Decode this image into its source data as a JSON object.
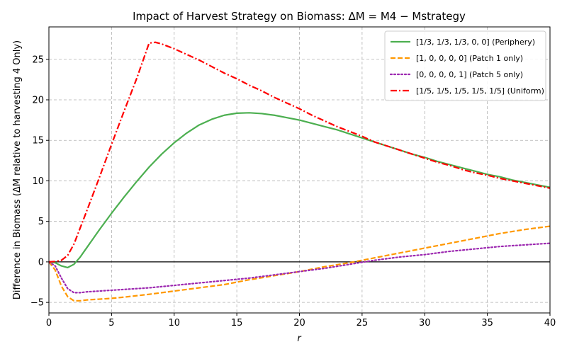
{
  "chart_data": {
    "type": "line",
    "title": "Impact of Harvest Strategy on Biomass: ΔM = M4 − Mstrategy",
    "xlabel": "r",
    "ylabel": "Difference in Biomass (ΔM relative to harvesting 4 Only)",
    "xlim": [
      0,
      40
    ],
    "ylim": [
      -6.3,
      29
    ],
    "xticks": [
      0,
      5,
      10,
      15,
      20,
      25,
      30,
      35,
      40
    ],
    "yticks": [
      -5,
      0,
      5,
      10,
      15,
      20,
      25
    ],
    "grid": true,
    "legend_position": "top-right",
    "zero_line": true,
    "series": [
      {
        "name": "[1/3, 1/3, 1/3, 0, 0] (Periphery)",
        "color": "#4caf50",
        "style": "solid",
        "x": [
          0,
          0.5,
          1,
          1.5,
          2,
          2.5,
          3,
          4,
          5,
          6,
          7,
          8,
          9,
          10,
          11,
          12,
          13,
          14,
          15,
          16,
          17,
          18,
          19,
          20,
          21,
          22,
          23,
          24,
          25,
          26,
          27,
          28,
          29,
          30,
          31,
          32,
          33,
          34,
          35,
          36,
          37,
          38,
          39,
          40
        ],
        "y": [
          0,
          -0.1,
          -0.5,
          -0.7,
          -0.3,
          0.6,
          1.7,
          3.9,
          6.0,
          8.0,
          9.9,
          11.7,
          13.3,
          14.7,
          15.9,
          16.9,
          17.6,
          18.1,
          18.35,
          18.4,
          18.3,
          18.1,
          17.8,
          17.5,
          17.1,
          16.7,
          16.3,
          15.8,
          15.3,
          14.8,
          14.3,
          13.8,
          13.3,
          12.9,
          12.4,
          12.0,
          11.6,
          11.2,
          10.8,
          10.5,
          10.1,
          9.8,
          9.5,
          9.2
        ]
      },
      {
        "name": "[1, 0, 0, 0, 0] (Patch 1 only)",
        "color": "#ff9800",
        "style": "dashed",
        "x": [
          0,
          0.5,
          1,
          1.5,
          2,
          2.5,
          3,
          4,
          5,
          6,
          8,
          10,
          12,
          14,
          16,
          18,
          20,
          22,
          24,
          25,
          26,
          28,
          30,
          32,
          34,
          36,
          38,
          40
        ],
        "y": [
          0,
          -1.0,
          -3.0,
          -4.3,
          -4.8,
          -4.8,
          -4.7,
          -4.6,
          -4.5,
          -4.35,
          -4.0,
          -3.6,
          -3.2,
          -2.8,
          -2.2,
          -1.7,
          -1.2,
          -0.6,
          -0.1,
          0.2,
          0.5,
          1.1,
          1.7,
          2.3,
          2.9,
          3.5,
          4.0,
          4.4
        ]
      },
      {
        "name": "[0, 0, 0, 0, 1] (Patch 5 only)",
        "color": "#9c27b0",
        "style": "dotted",
        "x": [
          0,
          0.5,
          1,
          1.5,
          2,
          2.5,
          3,
          4,
          5,
          6,
          8,
          10,
          12,
          14,
          16,
          18,
          20,
          22,
          24,
          26,
          28,
          30,
          32,
          34,
          36,
          38,
          40
        ],
        "y": [
          0,
          -0.5,
          -2.0,
          -3.3,
          -3.8,
          -3.8,
          -3.7,
          -3.6,
          -3.5,
          -3.4,
          -3.2,
          -2.9,
          -2.6,
          -2.3,
          -2.0,
          -1.6,
          -1.2,
          -0.8,
          -0.3,
          0.2,
          0.6,
          0.9,
          1.3,
          1.6,
          1.9,
          2.1,
          2.3
        ]
      },
      {
        "name": "[1/5, 1/5, 1/5, 1/5, 1/5] (Uniform)",
        "color": "#ff0000",
        "style": "dashdot",
        "x": [
          0,
          0.5,
          1,
          1.5,
          2,
          2.5,
          3,
          4,
          5,
          6,
          7,
          7.5,
          8,
          8.5,
          9,
          10,
          11,
          12,
          13,
          14,
          15,
          16,
          17,
          18,
          19,
          20,
          21,
          22,
          23,
          24,
          25,
          26,
          27,
          28,
          29,
          30,
          31,
          32,
          33,
          34,
          35,
          36,
          37,
          38,
          39,
          40
        ],
        "y": [
          0,
          0.05,
          0.2,
          0.8,
          2.2,
          4.2,
          6.2,
          10.3,
          14.5,
          18.6,
          22.6,
          24.8,
          27.0,
          27.1,
          26.9,
          26.3,
          25.6,
          24.9,
          24.1,
          23.3,
          22.6,
          21.8,
          21.1,
          20.3,
          19.6,
          18.9,
          18.1,
          17.4,
          16.7,
          16.1,
          15.5,
          14.8,
          14.3,
          13.8,
          13.3,
          12.8,
          12.3,
          11.9,
          11.4,
          11.0,
          10.7,
          10.3,
          10.0,
          9.7,
          9.4,
          9.1
        ]
      }
    ]
  }
}
